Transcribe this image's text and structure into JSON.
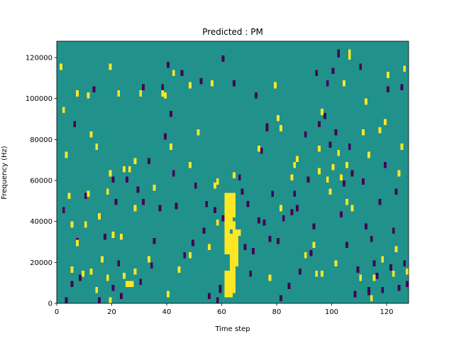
{
  "chart_data": {
    "type": "heatmap",
    "title": "Predicted : PM",
    "xlabel": "Time step",
    "ylabel": "Frequency (Hz)",
    "xlim": [
      0,
      128
    ],
    "ylim": [
      0,
      128000
    ],
    "x_ticks": [
      0,
      20,
      40,
      60,
      80,
      100,
      120
    ],
    "y_ticks": [
      0,
      20000,
      40000,
      60000,
      80000,
      100000,
      120000
    ],
    "n_time_steps": 128,
    "n_freq_bins": 128,
    "bin_height_hz": 1000,
    "colormap": "viridis",
    "colors": {
      "background": "#21918c",
      "high": "#fde725",
      "low": "#440154"
    },
    "grid": false,
    "bright_runs": [
      [
        1,
        114,
        117
      ],
      [
        2,
        93,
        96
      ],
      [
        3,
        71,
        74
      ],
      [
        4,
        51,
        54
      ],
      [
        5,
        15,
        18
      ],
      [
        5,
        37,
        40
      ],
      [
        7,
        28,
        31
      ],
      [
        7,
        101,
        104
      ],
      [
        9,
        13,
        16
      ],
      [
        10,
        37,
        40
      ],
      [
        11,
        52,
        55
      ],
      [
        11,
        100,
        103
      ],
      [
        12,
        14,
        17
      ],
      [
        12,
        81,
        84
      ],
      [
        14,
        5,
        8
      ],
      [
        14,
        75,
        78
      ],
      [
        15,
        41,
        44
      ],
      [
        16,
        20,
        23
      ],
      [
        18,
        53,
        56
      ],
      [
        18,
        11,
        14
      ],
      [
        19,
        0,
        3
      ],
      [
        19,
        62,
        65
      ],
      [
        19,
        114,
        117
      ],
      [
        20,
        32,
        35
      ],
      [
        22,
        101,
        104
      ],
      [
        23,
        31,
        34
      ],
      [
        24,
        64,
        67
      ],
      [
        24,
        12,
        15
      ],
      [
        25,
        8,
        11
      ],
      [
        26,
        8,
        11
      ],
      [
        26,
        64,
        67
      ],
      [
        27,
        8,
        11
      ],
      [
        28,
        45,
        48
      ],
      [
        28,
        68,
        71
      ],
      [
        28,
        14,
        17
      ],
      [
        30,
        101,
        104
      ],
      [
        33,
        20,
        23
      ],
      [
        35,
        55,
        58
      ],
      [
        38,
        101,
        104
      ],
      [
        39,
        100,
        103
      ],
      [
        40,
        3,
        6
      ],
      [
        41,
        75,
        78
      ],
      [
        42,
        111,
        114
      ],
      [
        44,
        15,
        18
      ],
      [
        48,
        22,
        25
      ],
      [
        48,
        66,
        69
      ],
      [
        48,
        105,
        108
      ],
      [
        51,
        82,
        85
      ],
      [
        55,
        26,
        29
      ],
      [
        56,
        106,
        109
      ],
      [
        57,
        56,
        59
      ],
      [
        58,
        38,
        41
      ],
      [
        58,
        58,
        61
      ],
      [
        61,
        3,
        16
      ],
      [
        61,
        24,
        54
      ],
      [
        62,
        3,
        16
      ],
      [
        62,
        24,
        54
      ],
      [
        63,
        3,
        34
      ],
      [
        63,
        36,
        54
      ],
      [
        64,
        5,
        40
      ],
      [
        64,
        42,
        54
      ],
      [
        64,
        61,
        64
      ],
      [
        65,
        18,
        36
      ],
      [
        66,
        33,
        36
      ],
      [
        73,
        74,
        77
      ],
      [
        77,
        11,
        14
      ],
      [
        79,
        105,
        108
      ],
      [
        80,
        89,
        92
      ],
      [
        81,
        84,
        87
      ],
      [
        81,
        45,
        48
      ],
      [
        85,
        60,
        63
      ],
      [
        86,
        66,
        69
      ],
      [
        87,
        69,
        72
      ],
      [
        90,
        22,
        25
      ],
      [
        93,
        27,
        30
      ],
      [
        94,
        13,
        16
      ],
      [
        95,
        74,
        77
      ],
      [
        95,
        63,
        66
      ],
      [
        96,
        92,
        95
      ],
      [
        96,
        13,
        16
      ],
      [
        98,
        59,
        62
      ],
      [
        99,
        53,
        56
      ],
      [
        100,
        65,
        68
      ],
      [
        101,
        18,
        21
      ],
      [
        102,
        72,
        75
      ],
      [
        103,
        60,
        63
      ],
      [
        104,
        106,
        109
      ],
      [
        105,
        66,
        69
      ],
      [
        105,
        48,
        51
      ],
      [
        106,
        119,
        124
      ],
      [
        107,
        45,
        48
      ],
      [
        110,
        11,
        14
      ],
      [
        111,
        82,
        85
      ],
      [
        112,
        97,
        100
      ],
      [
        113,
        71,
        74
      ],
      [
        114,
        1,
        4
      ],
      [
        115,
        11,
        14
      ],
      [
        117,
        83,
        86
      ],
      [
        118,
        20,
        23
      ],
      [
        119,
        87,
        90
      ],
      [
        120,
        110,
        113
      ],
      [
        122,
        13,
        16
      ],
      [
        123,
        25,
        28
      ],
      [
        124,
        62,
        65
      ],
      [
        125,
        75,
        78
      ],
      [
        126,
        113,
        116
      ],
      [
        127,
        14,
        17
      ]
    ],
    "dark_runs": [
      [
        2,
        44,
        47
      ],
      [
        3,
        0,
        3
      ],
      [
        5,
        8,
        11
      ],
      [
        6,
        86,
        89
      ],
      [
        7,
        29,
        32
      ],
      [
        8,
        11,
        14
      ],
      [
        10,
        51,
        54
      ],
      [
        13,
        103,
        106
      ],
      [
        15,
        0,
        3
      ],
      [
        17,
        31,
        34
      ],
      [
        20,
        6,
        9
      ],
      [
        20,
        59,
        62
      ],
      [
        21,
        48,
        51
      ],
      [
        22,
        18,
        21
      ],
      [
        23,
        2,
        5
      ],
      [
        25,
        59,
        62
      ],
      [
        29,
        54,
        57
      ],
      [
        30,
        9,
        12
      ],
      [
        31,
        48,
        51
      ],
      [
        31,
        104,
        107
      ],
      [
        33,
        68,
        71
      ],
      [
        34,
        17,
        20
      ],
      [
        35,
        29,
        32
      ],
      [
        37,
        45,
        48
      ],
      [
        38,
        104,
        107
      ],
      [
        39,
        80,
        83
      ],
      [
        40,
        115,
        118
      ],
      [
        41,
        91,
        94
      ],
      [
        42,
        62,
        65
      ],
      [
        43,
        46,
        49
      ],
      [
        45,
        111,
        114
      ],
      [
        46,
        22,
        25
      ],
      [
        49,
        28,
        31
      ],
      [
        50,
        56,
        59
      ],
      [
        52,
        107,
        110
      ],
      [
        53,
        34,
        37
      ],
      [
        54,
        47,
        50
      ],
      [
        55,
        2,
        5
      ],
      [
        57,
        44,
        47
      ],
      [
        58,
        0,
        3
      ],
      [
        59,
        5,
        9
      ],
      [
        60,
        40,
        43
      ],
      [
        60,
        118,
        121
      ],
      [
        63,
        45,
        48
      ],
      [
        64,
        106,
        109
      ],
      [
        66,
        60,
        63
      ],
      [
        67,
        53,
        56
      ],
      [
        68,
        26,
        29
      ],
      [
        69,
        47,
        50
      ],
      [
        70,
        13,
        16
      ],
      [
        71,
        24,
        27
      ],
      [
        72,
        100,
        103
      ],
      [
        73,
        39,
        42
      ],
      [
        74,
        73,
        76
      ],
      [
        75,
        38,
        41
      ],
      [
        76,
        84,
        88
      ],
      [
        77,
        30,
        33
      ],
      [
        78,
        52,
        55
      ],
      [
        80,
        29,
        32
      ],
      [
        81,
        1,
        4
      ],
      [
        82,
        40,
        43
      ],
      [
        84,
        7,
        10
      ],
      [
        85,
        43,
        46
      ],
      [
        86,
        52,
        55
      ],
      [
        87,
        45,
        48
      ],
      [
        88,
        14,
        17
      ],
      [
        90,
        81,
        84
      ],
      [
        91,
        59,
        62
      ],
      [
        92,
        23,
        26
      ],
      [
        93,
        36,
        39
      ],
      [
        94,
        111,
        114
      ],
      [
        95,
        86,
        89
      ],
      [
        97,
        90,
        93
      ],
      [
        98,
        106,
        109
      ],
      [
        99,
        76,
        79
      ],
      [
        100,
        112,
        115
      ],
      [
        101,
        82,
        85
      ],
      [
        102,
        120,
        124
      ],
      [
        103,
        42,
        45
      ],
      [
        104,
        57,
        60
      ],
      [
        105,
        27,
        30
      ],
      [
        106,
        75,
        78
      ],
      [
        107,
        62,
        65
      ],
      [
        108,
        3,
        6
      ],
      [
        109,
        15,
        18
      ],
      [
        110,
        114,
        117
      ],
      [
        111,
        58,
        61
      ],
      [
        112,
        36,
        39
      ],
      [
        113,
        4,
        8
      ],
      [
        114,
        30,
        33
      ],
      [
        115,
        18,
        21
      ],
      [
        116,
        12,
        15
      ],
      [
        117,
        48,
        51
      ],
      [
        118,
        5,
        8
      ],
      [
        119,
        66,
        69
      ],
      [
        120,
        103,
        106
      ],
      [
        121,
        16,
        19
      ],
      [
        122,
        34,
        37
      ],
      [
        123,
        53,
        56
      ],
      [
        124,
        6,
        9
      ],
      [
        125,
        104,
        107
      ],
      [
        126,
        18,
        21
      ],
      [
        127,
        8,
        11
      ]
    ]
  }
}
